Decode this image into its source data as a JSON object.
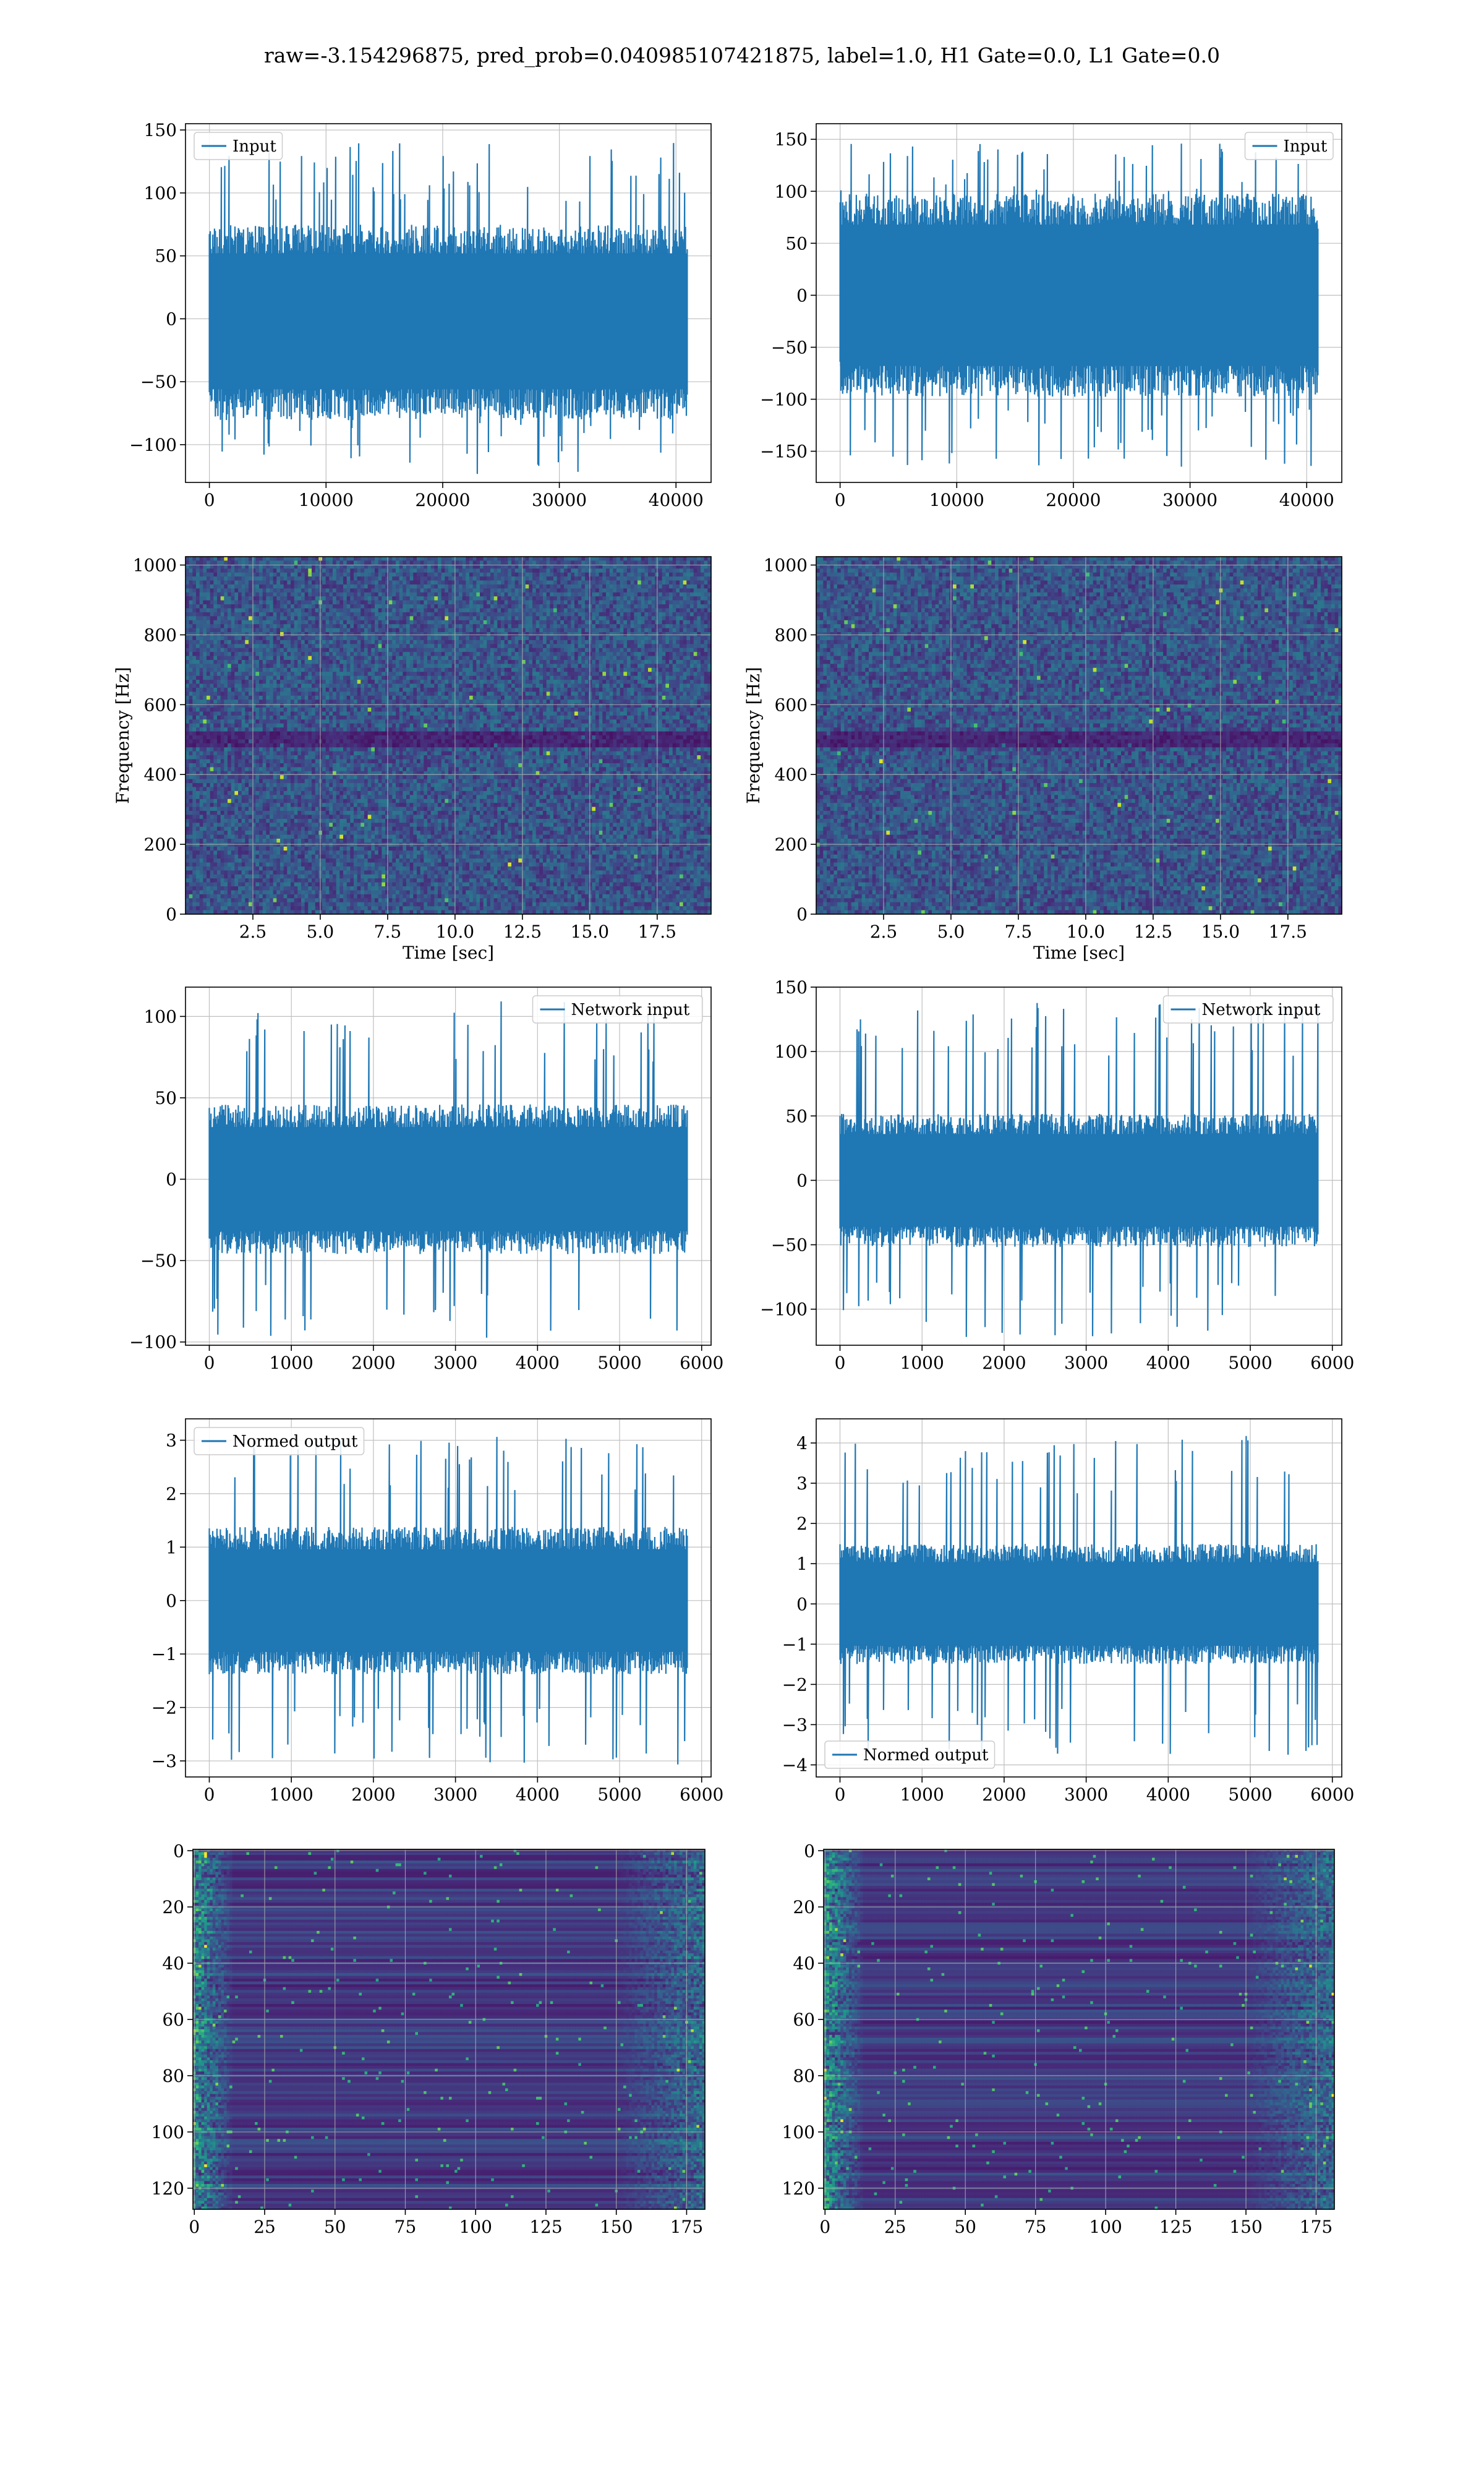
{
  "figure": {
    "suptitle": "raw=-3.154296875, pred_prob=0.040985107421875, label=1.0, H1 Gate=0.0, L1 Gate=0.0"
  },
  "colors": {
    "line": "#1f77b4",
    "grid": "#b0b0b0",
    "viridis_low": "#440154",
    "viridis_mid": "#21918c",
    "viridis_high": "#fde725"
  },
  "chart_data": [
    {
      "id": "h1-input",
      "type": "line",
      "title": "",
      "xlabel": "",
      "ylabel": "",
      "x_range": [
        0,
        40960
      ],
      "xlim": [
        -2048,
        43008
      ],
      "ylim": [
        -130,
        155
      ],
      "xticks": [
        0,
        10000,
        20000,
        30000,
        40000
      ],
      "xtick_labels": [
        "0",
        "10000",
        "20000",
        "30000",
        "40000"
      ],
      "yticks": [
        -100,
        -50,
        0,
        50,
        100,
        150
      ],
      "ytick_labels": [
        "−100",
        "−50",
        "0",
        "50",
        "100",
        "150"
      ],
      "series": [
        {
          "name": "Input",
          "envelope": [
            -125,
            140
          ],
          "band": [
            -70,
            65
          ]
        }
      ],
      "legend": "upper left",
      "grid": true
    },
    {
      "id": "l1-input",
      "type": "line",
      "title": "",
      "xlabel": "",
      "ylabel": "",
      "x_range": [
        0,
        40960
      ],
      "xlim": [
        -2048,
        43008
      ],
      "ylim": [
        -180,
        165
      ],
      "xticks": [
        0,
        10000,
        20000,
        30000,
        40000
      ],
      "xtick_labels": [
        "0",
        "10000",
        "20000",
        "30000",
        "40000"
      ],
      "yticks": [
        -150,
        -100,
        -50,
        0,
        50,
        100,
        150
      ],
      "ytick_labels": [
        "−150",
        "−100",
        "−50",
        "0",
        "50",
        "100",
        "150"
      ],
      "series": [
        {
          "name": "Input",
          "envelope": [
            -165,
            152
          ],
          "band": [
            -85,
            85
          ]
        }
      ],
      "legend": "upper right",
      "grid": true
    },
    {
      "id": "h1-spectrogram",
      "type": "heatmap",
      "title": "",
      "xlabel": "Time [sec]",
      "ylabel": "Frequency [Hz]",
      "xlim": [
        0,
        19.5
      ],
      "ylim": [
        0,
        1024
      ],
      "xticks": [
        2.5,
        5.0,
        7.5,
        10.0,
        12.5,
        15.0,
        17.5
      ],
      "xtick_labels": [
        "2.5",
        "5.0",
        "7.5",
        "10.0",
        "12.5",
        "15.0",
        "17.5"
      ],
      "yticks": [
        0,
        200,
        400,
        600,
        800,
        1000
      ],
      "ytick_labels": [
        "0",
        "200",
        "400",
        "600",
        "800",
        "1000"
      ],
      "colormap": "viridis",
      "grid": true
    },
    {
      "id": "l1-spectrogram",
      "type": "heatmap",
      "title": "",
      "xlabel": "Time [sec]",
      "ylabel": "Frequency [Hz]",
      "xlim": [
        0,
        19.5
      ],
      "ylim": [
        0,
        1024
      ],
      "xticks": [
        2.5,
        5.0,
        7.5,
        10.0,
        12.5,
        15.0,
        17.5
      ],
      "xtick_labels": [
        "2.5",
        "5.0",
        "7.5",
        "10.0",
        "12.5",
        "15.0",
        "17.5"
      ],
      "yticks": [
        0,
        200,
        400,
        600,
        800,
        1000
      ],
      "ytick_labels": [
        "0",
        "200",
        "400",
        "600",
        "800",
        "1000"
      ],
      "colormap": "viridis",
      "grid": true
    },
    {
      "id": "h1-network-input",
      "type": "line",
      "title": "",
      "xlabel": "",
      "ylabel": "",
      "x_range": [
        0,
        5824
      ],
      "xlim": [
        -290,
        6115
      ],
      "ylim": [
        -102,
        118
      ],
      "xticks": [
        0,
        1000,
        2000,
        3000,
        4000,
        5000,
        6000
      ],
      "xtick_labels": [
        "0",
        "1000",
        "2000",
        "3000",
        "4000",
        "5000",
        "6000"
      ],
      "yticks": [
        -100,
        -50,
        0,
        50,
        100
      ],
      "ytick_labels": [
        "−100",
        "−50",
        "0",
        "50",
        "100"
      ],
      "series": [
        {
          "name": "Network input",
          "envelope": [
            -100,
            110
          ],
          "band": [
            -40,
            40
          ]
        }
      ],
      "legend": "upper right",
      "grid": true
    },
    {
      "id": "l1-network-input",
      "type": "line",
      "title": "",
      "xlabel": "",
      "ylabel": "",
      "x_range": [
        0,
        5824
      ],
      "xlim": [
        -290,
        6115
      ],
      "ylim": [
        -128,
        150
      ],
      "xticks": [
        0,
        1000,
        2000,
        3000,
        4000,
        5000,
        6000
      ],
      "xtick_labels": [
        "0",
        "1000",
        "2000",
        "3000",
        "4000",
        "5000",
        "6000"
      ],
      "yticks": [
        -100,
        -50,
        0,
        50,
        100,
        150
      ],
      "ytick_labels": [
        "−100",
        "−50",
        "0",
        "50",
        "100",
        "150"
      ],
      "series": [
        {
          "name": "Network input",
          "envelope": [
            -122,
            138
          ],
          "band": [
            -45,
            45
          ]
        }
      ],
      "legend": "upper right",
      "grid": true
    },
    {
      "id": "h1-normed-output",
      "type": "line",
      "title": "",
      "xlabel": "",
      "ylabel": "",
      "x_range": [
        0,
        5824
      ],
      "xlim": [
        -290,
        6115
      ],
      "ylim": [
        -3.3,
        3.4
      ],
      "xticks": [
        0,
        1000,
        2000,
        3000,
        4000,
        5000,
        6000
      ],
      "xtick_labels": [
        "0",
        "1000",
        "2000",
        "3000",
        "4000",
        "5000",
        "6000"
      ],
      "yticks": [
        -3,
        -2,
        -1,
        0,
        1,
        2,
        3
      ],
      "ytick_labels": [
        "−3",
        "−2",
        "−1",
        "0",
        "1",
        "2",
        "3"
      ],
      "series": [
        {
          "name": "Normed output",
          "envelope": [
            -3.1,
            3.1
          ],
          "band": [
            -1.2,
            1.2
          ]
        }
      ],
      "legend": "upper left",
      "grid": true
    },
    {
      "id": "l1-normed-output",
      "type": "line",
      "title": "",
      "xlabel": "",
      "ylabel": "",
      "x_range": [
        0,
        5824
      ],
      "xlim": [
        -290,
        6115
      ],
      "ylim": [
        -4.3,
        4.6
      ],
      "xticks": [
        0,
        1000,
        2000,
        3000,
        4000,
        5000,
        6000
      ],
      "xtick_labels": [
        "0",
        "1000",
        "2000",
        "3000",
        "4000",
        "5000",
        "6000"
      ],
      "yticks": [
        -4,
        -3,
        -2,
        -1,
        0,
        1,
        2,
        3,
        4
      ],
      "ytick_labels": [
        "−4",
        "−3",
        "−2",
        "−1",
        "0",
        "1",
        "2",
        "3",
        "4"
      ],
      "series": [
        {
          "name": "Normed output",
          "envelope": [
            -3.8,
            4.2
          ],
          "band": [
            -1.3,
            1.3
          ]
        }
      ],
      "legend": "lower left",
      "grid": true
    },
    {
      "id": "h1-feature-map",
      "type": "heatmap",
      "title": "",
      "xlabel": "",
      "ylabel": "",
      "xlim": [
        -0.5,
        181.5
      ],
      "ylim": [
        127.5,
        -0.5
      ],
      "rows": 128,
      "cols": 182,
      "xticks": [
        0,
        25,
        50,
        75,
        100,
        125,
        150,
        175
      ],
      "xtick_labels": [
        "0",
        "25",
        "50",
        "75",
        "100",
        "125",
        "150",
        "175"
      ],
      "yticks": [
        0,
        20,
        40,
        60,
        80,
        100,
        120
      ],
      "ytick_labels": [
        "0",
        "20",
        "40",
        "60",
        "80",
        "100",
        "120"
      ],
      "colormap": "viridis",
      "grid": true
    },
    {
      "id": "l1-feature-map",
      "type": "heatmap",
      "title": "",
      "xlabel": "",
      "ylabel": "",
      "xlim": [
        -0.5,
        181.5
      ],
      "ylim": [
        127.5,
        -0.5
      ],
      "rows": 128,
      "cols": 182,
      "xticks": [
        0,
        25,
        50,
        75,
        100,
        125,
        150,
        175
      ],
      "xtick_labels": [
        "0",
        "25",
        "50",
        "75",
        "100",
        "125",
        "150",
        "175"
      ],
      "yticks": [
        0,
        20,
        40,
        60,
        80,
        100,
        120
      ],
      "ytick_labels": [
        "0",
        "20",
        "40",
        "60",
        "80",
        "100",
        "120"
      ],
      "colormap": "viridis",
      "grid": true
    }
  ]
}
